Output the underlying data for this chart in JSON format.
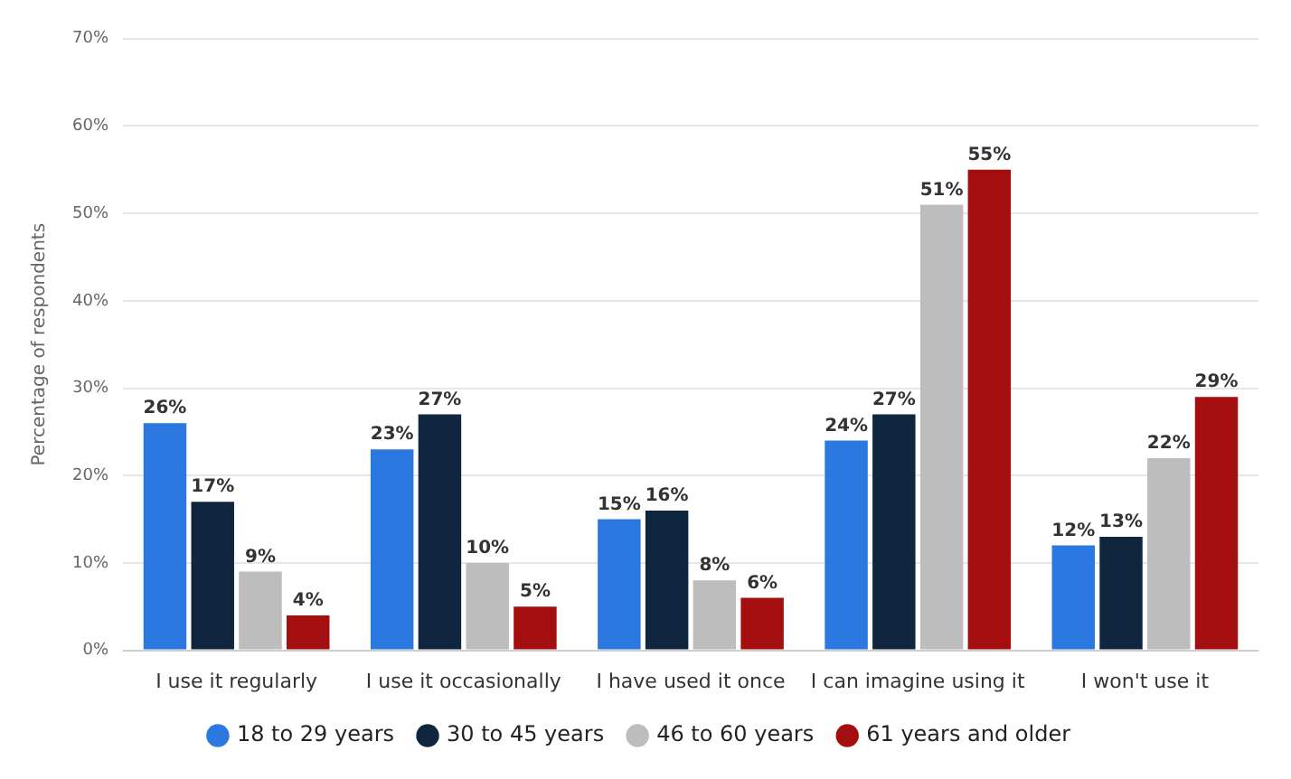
{
  "chart_data": {
    "type": "bar",
    "ylabel": "Percentage of respondents",
    "categories": [
      "I use it regularly",
      "I use it occasionally",
      "I have used it once",
      "I can imagine using it",
      "I won't use it"
    ],
    "series": [
      {
        "name": "18 to 29 years",
        "color": "#2a78e0",
        "values": [
          26,
          23,
          15,
          24,
          12
        ],
        "value_labels": [
          "26%",
          "23%",
          "15%",
          "24%",
          "12%"
        ]
      },
      {
        "name": "30 to 45 years",
        "color": "#10263f",
        "values": [
          17,
          27,
          16,
          27,
          13
        ],
        "value_labels": [
          "17%",
          "27%",
          "16%",
          "27%",
          "13%"
        ]
      },
      {
        "name": "46 to 60 years",
        "color": "#bdbdbd",
        "values": [
          9,
          10,
          8,
          51,
          22
        ],
        "value_labels": [
          "9%",
          "10%",
          "8%",
          "51%",
          "22%"
        ]
      },
      {
        "name": "61 years and older",
        "color": "#a50e0e",
        "values": [
          4,
          5,
          6,
          55,
          29
        ],
        "value_labels": [
          "4%",
          "5%",
          "6%",
          "55%",
          "29%"
        ]
      }
    ],
    "ylim": [
      0,
      70
    ],
    "yticks": [
      {
        "value": 0,
        "label": "0%"
      },
      {
        "value": 10,
        "label": "10%"
      },
      {
        "value": 20,
        "label": "20%"
      },
      {
        "value": 30,
        "label": "30%"
      },
      {
        "value": 40,
        "label": "40%"
      },
      {
        "value": 50,
        "label": "50%"
      },
      {
        "value": 60,
        "label": "60%"
      },
      {
        "value": 70,
        "label": "70%"
      }
    ],
    "grid": "y",
    "legend": "bottom"
  }
}
